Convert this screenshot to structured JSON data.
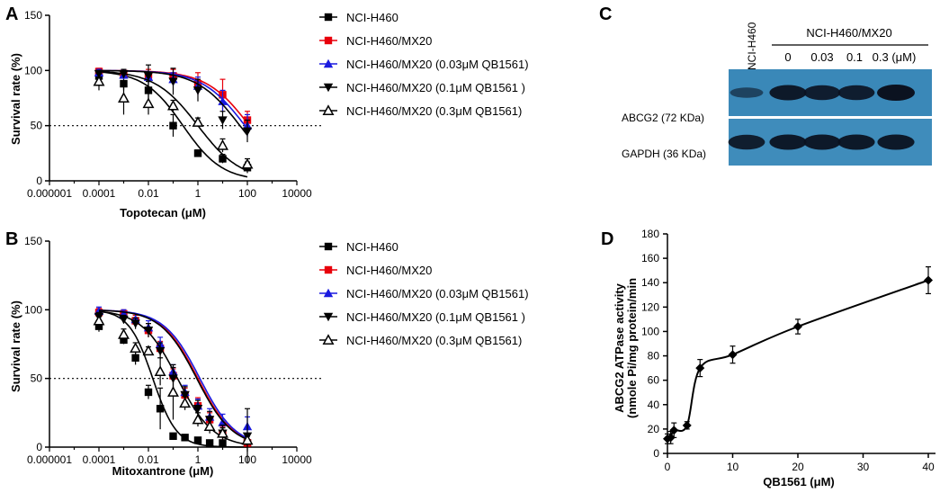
{
  "panels": {
    "A": "A",
    "B": "B",
    "C": "C",
    "D": "D"
  },
  "colors": {
    "NCI-H460": "#000000",
    "NCI-H460/MX20": "#e8000b",
    "NCI-H460/MX20 (0.03μM QB1561)": "#1a1adf",
    "NCI-H460/MX20 (0.1μM QB1561 )": "#000000",
    "NCI-H460/MX20 (0.3μM QB1561)": "#000000"
  },
  "chart_data": [
    {
      "id": "A",
      "type": "line",
      "xscale": "log",
      "xlabel": "Topotecan (μM)",
      "ylabel": "Survival rate (%)",
      "xticks": [
        "0.000001",
        "0.0001",
        "0.01",
        "1",
        "100",
        "10000"
      ],
      "xtick_values": [
        1e-06,
        0.0001,
        0.01,
        1,
        100,
        10000
      ],
      "yticks": [
        "0",
        "50",
        "100",
        "150"
      ],
      "ylim": [
        0,
        150
      ],
      "xlim": [
        1e-06,
        10000
      ],
      "reference_line_y": 50,
      "legend": [
        "NCI-H460",
        "NCI-H460/MX20",
        "NCI-H460/MX20 (0.03μM QB1561)",
        "NCI-H460/MX20 (0.1μM QB1561 )",
        "NCI-H460/MX20 (0.3μM QB1561)"
      ],
      "x": [
        0.0001,
        0.001,
        0.01,
        0.1,
        1,
        10,
        100
      ],
      "series": [
        {
          "name": "NCI-H460",
          "marker": "square",
          "values": [
            95,
            88,
            82,
            50,
            25,
            20,
            12
          ],
          "errors": [
            5,
            6,
            8,
            10,
            3,
            4,
            5
          ],
          "ic50": 0.25,
          "hill": 0.55
        },
        {
          "name": "NCI-H460/MX20",
          "marker": "square",
          "values": [
            99,
            97,
            96,
            95,
            88,
            78,
            55
          ],
          "errors": [
            3,
            4,
            5,
            6,
            10,
            14,
            8
          ],
          "ic50": 120,
          "hill": 0.5
        },
        {
          "name": "NCI-H460/MX20 (0.03μM QB1561)",
          "marker": "triangle-up",
          "values": [
            98,
            96,
            94,
            92,
            86,
            72,
            50
          ],
          "errors": [
            3,
            4,
            5,
            6,
            8,
            10,
            10
          ],
          "ic50": 80,
          "hill": 0.5
        },
        {
          "name": "NCI-H460/MX20 (0.1μM QB1561 )",
          "marker": "triangle-down",
          "values": [
            97,
            97,
            95,
            90,
            82,
            55,
            45
          ],
          "errors": [
            3,
            4,
            10,
            12,
            10,
            8,
            10
          ],
          "ic50": 50,
          "hill": 0.5
        },
        {
          "name": "NCI-H460/MX20 (0.3μM QB1561)",
          "marker": "triangle-open",
          "values": [
            90,
            75,
            70,
            68,
            53,
            32,
            15
          ],
          "errors": [
            8,
            15,
            10,
            5,
            4,
            6,
            5
          ],
          "ic50": 1.0,
          "hill": 0.5
        }
      ]
    },
    {
      "id": "B",
      "type": "line",
      "xscale": "log",
      "xlabel": "Mitoxantrone (μM)",
      "ylabel": "Survival rate (%)",
      "xticks": [
        "0.000001",
        "0.0001",
        "0.01",
        "1",
        "100",
        "10000"
      ],
      "xtick_values": [
        1e-06,
        0.0001,
        0.01,
        1,
        100,
        10000
      ],
      "yticks": [
        "0",
        "50",
        "100",
        "150"
      ],
      "ylim": [
        0,
        150
      ],
      "xlim": [
        1e-06,
        10000
      ],
      "reference_line_y": 50,
      "legend": [
        "NCI-H460",
        "NCI-H460/MX20",
        "NCI-H460/MX20 (0.03μM QB1561)",
        "NCI-H460/MX20 (0.1μM QB1561 )",
        "NCI-H460/MX20 (0.3μM QB1561)"
      ],
      "x": [
        0.0001,
        0.001,
        0.003,
        0.01,
        0.03,
        0.1,
        0.3,
        1,
        3,
        10,
        100
      ],
      "series": [
        {
          "name": "NCI-H460",
          "marker": "square",
          "values": [
            88,
            78,
            65,
            40,
            28,
            8,
            7,
            5,
            3,
            3,
            3
          ],
          "errors": [
            4,
            3,
            5,
            5,
            15,
            2,
            2,
            2,
            2,
            2,
            2
          ],
          "ic50": 0.015,
          "hill": 0.9
        },
        {
          "name": "NCI-H460/MX20",
          "marker": "square",
          "values": [
            98,
            97,
            92,
            85,
            72,
            52,
            38,
            30,
            20,
            10,
            3
          ],
          "errors": [
            3,
            3,
            4,
            5,
            5,
            5,
            5,
            6,
            5,
            5,
            2
          ],
          "ic50": 1.0,
          "hill": 0.6
        },
        {
          "name": "NCI-H460/MX20 (0.03μM QB1561)",
          "marker": "triangle-up",
          "values": [
            99,
            97,
            93,
            87,
            75,
            55,
            40,
            30,
            22,
            18,
            15
          ],
          "errors": [
            3,
            3,
            4,
            5,
            5,
            5,
            5,
            5,
            6,
            6,
            7
          ],
          "ic50": 1.2,
          "hill": 0.6
        },
        {
          "name": "NCI-H460/MX20 (0.1μM QB1561 )",
          "marker": "triangle-down",
          "values": [
            95,
            93,
            90,
            85,
            70,
            50,
            38,
            28,
            20,
            10,
            8
          ],
          "errors": [
            3,
            3,
            4,
            5,
            6,
            8,
            6,
            6,
            6,
            6,
            20
          ],
          "ic50": 0.9,
          "hill": 0.6
        },
        {
          "name": "NCI-H460/MX20 (0.3μM QB1561)",
          "marker": "triangle-open",
          "values": [
            92,
            82,
            72,
            70,
            55,
            40,
            32,
            20,
            15,
            10,
            5
          ],
          "errors": [
            3,
            4,
            4,
            3,
            10,
            20,
            5,
            5,
            5,
            4,
            3
          ],
          "ic50": 0.15,
          "hill": 0.6
        }
      ]
    },
    {
      "id": "D",
      "type": "line",
      "xscale": "linear",
      "xlabel": "QB1561 (μM)",
      "ylabel": "ABCG2 ATPase activity",
      "ylabel2": "(nmole Pi/mg protein/min",
      "xticks": [
        "0",
        "10",
        "20",
        "30",
        "40"
      ],
      "yticks": [
        "0",
        "20",
        "40",
        "60",
        "80",
        "100",
        "120",
        "140",
        "160",
        "180"
      ],
      "xlim": [
        0,
        40
      ],
      "ylim": [
        0,
        180
      ],
      "x": [
        0,
        0.5,
        1,
        3,
        5,
        10,
        20,
        40
      ],
      "series": [
        {
          "name": "QB1561",
          "marker": "diamond",
          "values": [
            12,
            13,
            19,
            23,
            70,
            81,
            104,
            142
          ],
          "errors": [
            4,
            5,
            6,
            3,
            7,
            7,
            6,
            11
          ]
        }
      ]
    }
  ],
  "blot": {
    "top_sample": "NCI-H460",
    "group_label": "NCI-H460/MX20",
    "lanes": [
      "0",
      "0.03",
      "0.1",
      "0.3 (μM)"
    ],
    "rows": [
      {
        "label": "ABCG2 (72 KDa)",
        "intensities": [
          0.35,
          0.9,
          0.85,
          0.85,
          1.0
        ]
      },
      {
        "label": "GAPDH (36 KDa)",
        "intensities": [
          0.85,
          0.9,
          0.9,
          0.9,
          0.9
        ]
      }
    ]
  }
}
